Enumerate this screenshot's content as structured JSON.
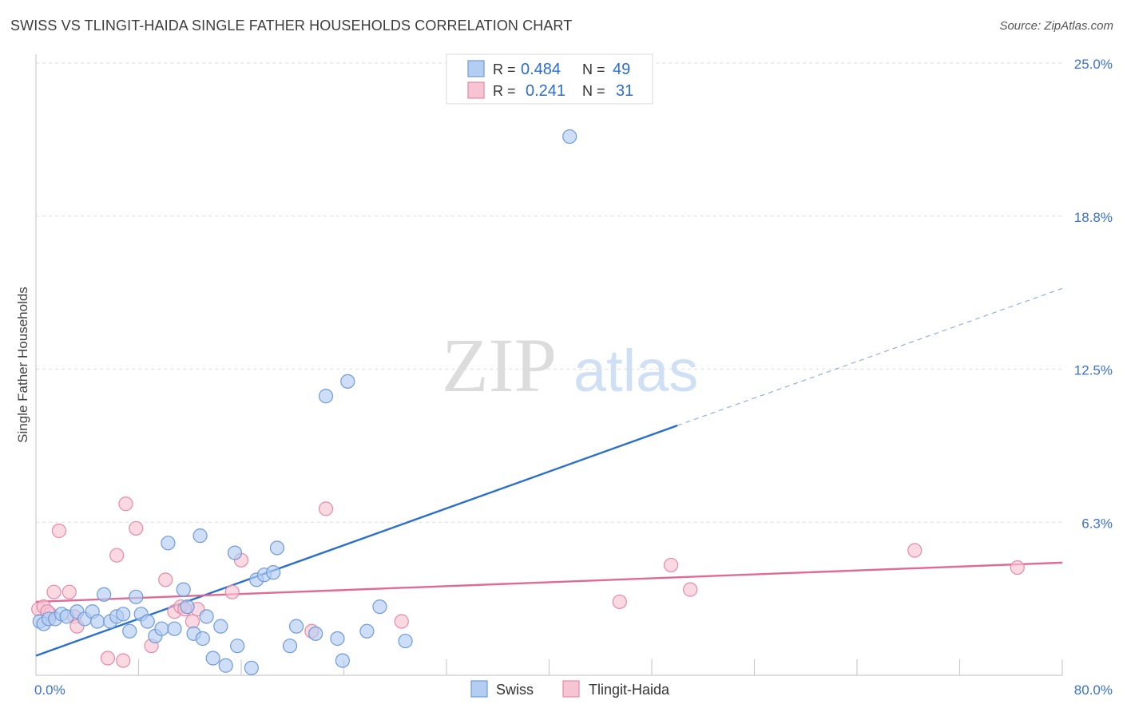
{
  "header": {
    "title": "SWISS VS TLINGIT-HAIDA SINGLE FATHER HOUSEHOLDS CORRELATION CHART",
    "source": "Source: ZipAtlas.com"
  },
  "watermark": {
    "zip": "ZIP",
    "atlas": "atlas"
  },
  "stats_legend": {
    "r_label": "R =",
    "n_label": "N =",
    "rows": [
      {
        "r": "0.484",
        "n": "49"
      },
      {
        "r": "0.241",
        "n": "31"
      }
    ]
  },
  "chart_data": {
    "type": "scatter",
    "title": "SWISS VS TLINGIT-HAIDA SINGLE FATHER HOUSEHOLDS CORRELATION CHART",
    "ylabel": "Single Father Households",
    "xlim": [
      0,
      80
    ],
    "ylim": [
      0,
      25
    ],
    "y_ticks": [
      "25.0%",
      "18.8%",
      "12.5%",
      "6.3%"
    ],
    "y_tick_values": [
      25.0,
      18.75,
      12.5,
      6.25
    ],
    "x_tick_labels": [
      "0.0%",
      "80.0%"
    ],
    "x_tick_label_values": [
      0,
      80
    ],
    "x_gridline_values": [
      8,
      16,
      24,
      32,
      40,
      48,
      56,
      64,
      72,
      80
    ],
    "grid": true,
    "legend_position": "bottom",
    "colors": {
      "swiss_fill": "#b4cdf2",
      "swiss_stroke": "#6f9bd8",
      "swiss_line": "#2b6fcc",
      "tlingit_fill": "#f7c4d4",
      "tlingit_stroke": "#e58aa8",
      "tlingit_line": "#e06a93",
      "value_text": "#2b6fcc",
      "tick_text": "#3a73c8"
    },
    "series": [
      {
        "name": "Swiss",
        "trend": {
          "x0": 0,
          "y0": 0.8,
          "x1": 50,
          "y1": 10.2,
          "dash_to_x": 80,
          "dash_to_y": 15.8
        },
        "points": [
          [
            0.3,
            2.2
          ],
          [
            0.6,
            2.1
          ],
          [
            1.0,
            2.3
          ],
          [
            1.5,
            2.3
          ],
          [
            2.0,
            2.5
          ],
          [
            2.4,
            2.4
          ],
          [
            3.2,
            2.6
          ],
          [
            3.8,
            2.3
          ],
          [
            4.4,
            2.6
          ],
          [
            4.8,
            2.2
          ],
          [
            5.3,
            3.3
          ],
          [
            5.8,
            2.2
          ],
          [
            6.3,
            2.4
          ],
          [
            6.8,
            2.5
          ],
          [
            7.3,
            1.8
          ],
          [
            7.8,
            3.2
          ],
          [
            8.2,
            2.5
          ],
          [
            8.7,
            2.2
          ],
          [
            9.3,
            1.6
          ],
          [
            9.8,
            1.9
          ],
          [
            10.3,
            5.4
          ],
          [
            10.8,
            1.9
          ],
          [
            11.5,
            3.5
          ],
          [
            11.8,
            2.8
          ],
          [
            12.3,
            1.7
          ],
          [
            12.8,
            5.7
          ],
          [
            13.3,
            2.4
          ],
          [
            13.8,
            0.7
          ],
          [
            14.4,
            2.0
          ],
          [
            14.8,
            0.4
          ],
          [
            15.5,
            5.0
          ],
          [
            15.7,
            1.2
          ],
          [
            16.8,
            0.3
          ],
          [
            17.2,
            3.9
          ],
          [
            17.8,
            4.1
          ],
          [
            18.5,
            4.2
          ],
          [
            18.8,
            5.2
          ],
          [
            19.8,
            1.2
          ],
          [
            20.3,
            2.0
          ],
          [
            21.8,
            1.7
          ],
          [
            22.6,
            11.4
          ],
          [
            23.5,
            1.5
          ],
          [
            23.9,
            0.6
          ],
          [
            24.3,
            12.0
          ],
          [
            25.8,
            1.8
          ],
          [
            26.8,
            2.8
          ],
          [
            28.8,
            1.4
          ],
          [
            41.6,
            22.0
          ],
          [
            13.0,
            1.5
          ]
        ]
      },
      {
        "name": "Tlingit-Haida",
        "trend": {
          "x0": 0,
          "y0": 3.0,
          "x1": 80,
          "y1": 4.6
        },
        "points": [
          [
            0.2,
            2.7
          ],
          [
            0.6,
            2.8
          ],
          [
            1.1,
            2.5
          ],
          [
            1.4,
            3.4
          ],
          [
            1.8,
            5.9
          ],
          [
            2.6,
            3.4
          ],
          [
            3.0,
            2.4
          ],
          [
            3.2,
            2.0
          ],
          [
            5.6,
            0.7
          ],
          [
            6.3,
            4.9
          ],
          [
            6.8,
            0.6
          ],
          [
            7.0,
            7.0
          ],
          [
            7.8,
            6.0
          ],
          [
            9.0,
            1.2
          ],
          [
            10.1,
            3.9
          ],
          [
            10.8,
            2.6
          ],
          [
            11.3,
            2.8
          ],
          [
            12.2,
            2.2
          ],
          [
            12.6,
            2.7
          ],
          [
            15.3,
            3.4
          ],
          [
            16.0,
            4.7
          ],
          [
            21.5,
            1.8
          ],
          [
            22.6,
            6.8
          ],
          [
            28.5,
            2.2
          ],
          [
            45.5,
            3.0
          ],
          [
            49.5,
            4.5
          ],
          [
            51.0,
            3.5
          ],
          [
            68.5,
            5.1
          ],
          [
            76.5,
            4.4
          ],
          [
            11.6,
            2.7
          ],
          [
            0.9,
            2.6
          ]
        ]
      }
    ]
  }
}
